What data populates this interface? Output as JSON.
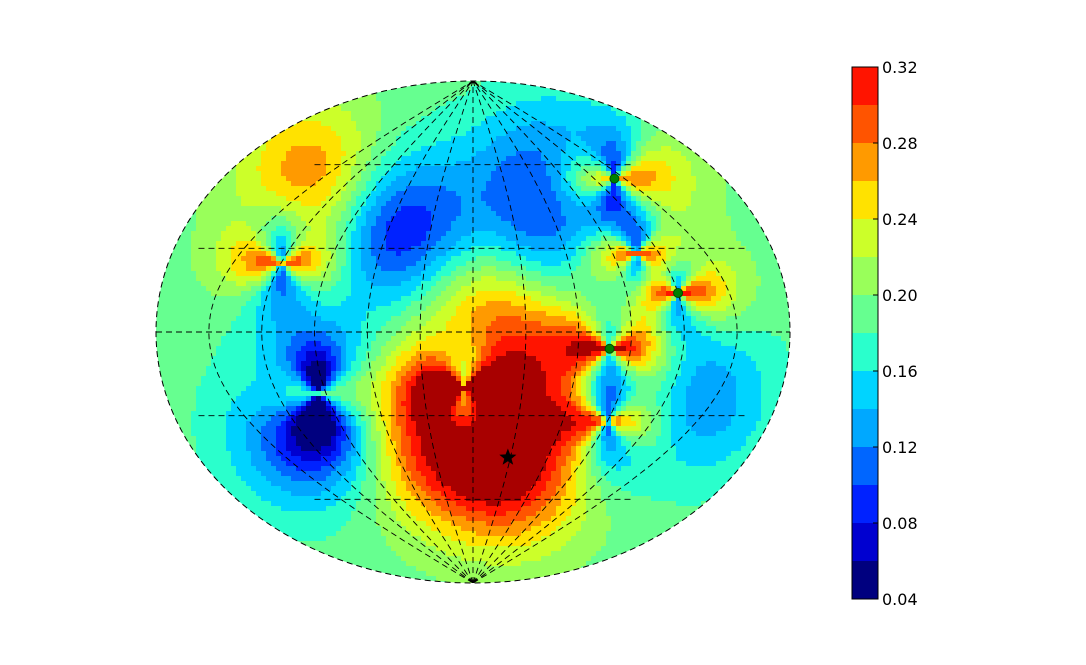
{
  "chart_data": {
    "type": "heatmap",
    "projection": "aitoff-ellipse",
    "colormap": "jet",
    "grid": true,
    "colorbar": {
      "placement": "right",
      "levels": [
        0.04,
        0.06,
        0.08,
        0.1,
        0.12,
        0.14,
        0.16,
        0.18,
        0.2,
        0.22,
        0.24,
        0.26,
        0.28,
        0.3,
        0.32
      ],
      "tick_labels": [
        "0.04",
        "0.08",
        "0.12",
        "0.16",
        "0.20",
        "0.24",
        "0.28",
        "0.32"
      ],
      "colors": [
        "#00007f",
        "#0000d0",
        "#0022ff",
        "#0066ff",
        "#00a8ff",
        "#00d4ff",
        "#2affcc",
        "#66ff90",
        "#99ff5a",
        "#ccff29",
        "#ffe200",
        "#ff9a00",
        "#ff5400",
        "#ff1400",
        "#a80000"
      ]
    },
    "grid_lines": {
      "longitudes_deg": [
        -150,
        -120,
        -90,
        -60,
        -30,
        0,
        30,
        60,
        90,
        120,
        150
      ],
      "latitudes_deg": [
        -60,
        -30,
        0,
        30,
        60
      ]
    },
    "singular_points": [
      {
        "lon": -120,
        "lat": 25
      },
      {
        "lon": -95,
        "lat": -22
      },
      {
        "lon": -5,
        "lat": -20
      },
      {
        "lon": 78,
        "lat": -6,
        "marker": "green-dot"
      },
      {
        "lon": 90,
        "lat": -32
      },
      {
        "lon": 120,
        "lat": 14,
        "marker": "green-dot"
      },
      {
        "lon": 140,
        "lat": 55,
        "marker": "green-dot"
      },
      {
        "lon": 105,
        "lat": 28
      }
    ],
    "maxima": [
      {
        "lon": 30,
        "lat": -48,
        "value": 0.33
      },
      {
        "lon": 15,
        "lat": 5,
        "value": 0.3
      },
      {
        "lon": -30,
        "lat": -35,
        "value": 0.31
      },
      {
        "lon": 90,
        "lat": -5,
        "value": 0.31
      },
      {
        "lon": -140,
        "lat": 52,
        "value": 0.31
      },
      {
        "lon": 112,
        "lat": 45,
        "value": 0.28
      }
    ],
    "minima": [
      {
        "lon": -60,
        "lat": 38,
        "value": 0.05
      },
      {
        "lon": -105,
        "lat": -32,
        "value": 0.06
      },
      {
        "lon": 80,
        "lat": 55,
        "value": 0.09
      },
      {
        "lon": 125,
        "lat": -20,
        "value": 0.08
      },
      {
        "lon": 62,
        "lat": 28,
        "value": 0.09
      }
    ],
    "baseline": 0.19,
    "star_marker": {
      "lon": 28,
      "lat": -45
    }
  }
}
